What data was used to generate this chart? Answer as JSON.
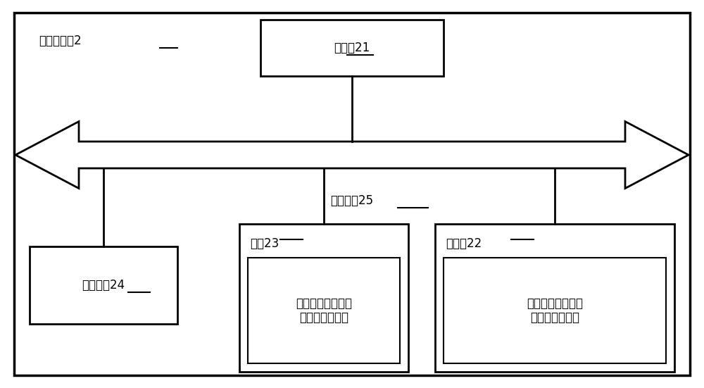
{
  "title_label": "飞针测试机2",
  "processor_label": "处理器21",
  "bus_label": "内部总线25",
  "comm_label": "通信接口24",
  "mem_label": "内存23",
  "mem_sub_label": "飞针测试机的测试\n轴极性分配方法",
  "storage_label": "存储器22",
  "storage_sub_label": "飞针测试机的测试\n轴极性分配方法",
  "bg_color": "#ffffff",
  "box_color": "#ffffff",
  "border_color": "#000000",
  "text_color": "#000000",
  "font_size_title": 16,
  "font_size_main": 15,
  "font_size_label": 14,
  "font_size_sub": 13,
  "outer_border_color": "#000000",
  "figw": 10.0,
  "figh": 5.51
}
